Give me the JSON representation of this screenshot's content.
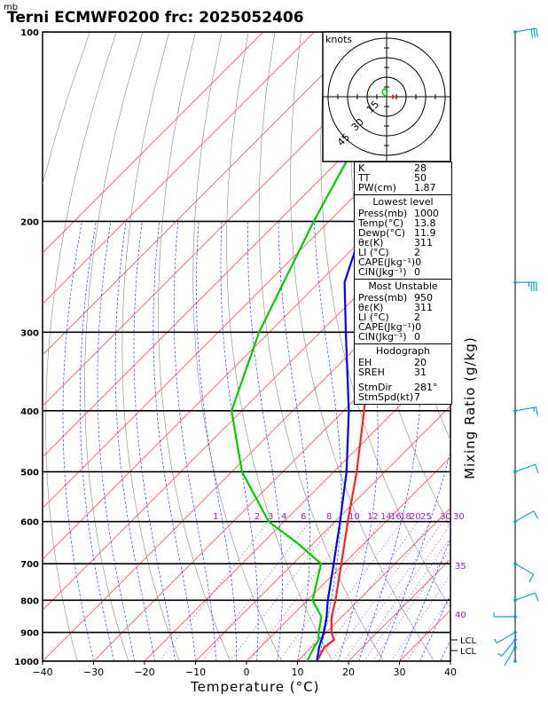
{
  "header": {
    "title": "Terni ECMWF0200  frc: 2025052406",
    "pressure_unit": "mb"
  },
  "axes": {
    "x_title": "Temperature (°C)",
    "y2_title": "Mixing Ratio (g/kg)"
  },
  "hodograph": {
    "unit_label": "knots",
    "ring_labels": [
      "15",
      "30",
      "45"
    ]
  },
  "indices": {
    "top": [
      {
        "label": "K",
        "value": "28"
      },
      {
        "label": "TT",
        "value": "50"
      },
      {
        "label": "PW(cm)",
        "value": "1.87"
      }
    ],
    "lowest_level": {
      "title": "Lowest level",
      "rows": [
        {
          "label": "Press(mb)",
          "value": "1000"
        },
        {
          "label": "Temp(°C)",
          "value": "13.8"
        },
        {
          "label": "Dewp(°C)",
          "value": "11.9"
        },
        {
          "label": "θε(K)",
          "value": "311"
        },
        {
          "label": "LI (°C)",
          "value": "2"
        },
        {
          "label": "CAPE(Jkg⁻¹)",
          "value": "0"
        },
        {
          "label": "CIN(Jkg⁻¹)",
          "value": "0"
        }
      ]
    },
    "most_unstable": {
      "title": "Most Unstable",
      "rows": [
        {
          "label": "Press(mb)",
          "value": "950"
        },
        {
          "label": "θε(K)",
          "value": "311"
        },
        {
          "label": "LI (°C)",
          "value": "2"
        },
        {
          "label": "CAPE(Jkg⁻¹)",
          "value": "0"
        },
        {
          "label": "CIN(Jkg⁻¹)",
          "value": "0"
        }
      ]
    },
    "hodograph_box": {
      "title": "Hodograph",
      "rows": [
        {
          "label": "EH",
          "value": "20"
        },
        {
          "label": "SREH",
          "value": "31"
        },
        {
          "label": "StmDir",
          "value": "281°"
        },
        {
          "label": "StmSpd(kt)",
          "value": "7"
        }
      ]
    }
  },
  "chart_data": {
    "type": "line",
    "title": "Terni ECMWF0200  frc: 2025052406",
    "x_ticks": [
      "−40",
      "−30",
      "−20",
      "−10",
      "0",
      "10",
      "20",
      "30",
      "40"
    ],
    "x_tick_values": [
      -40,
      -30,
      -20,
      -10,
      0,
      10,
      20,
      30,
      40
    ],
    "xlim": [
      -40,
      40
    ],
    "y_ticks": [
      "100",
      "200",
      "300",
      "400",
      "500",
      "600",
      "700",
      "800",
      "900",
      "1000"
    ],
    "y_tick_values": [
      100,
      200,
      300,
      400,
      500,
      600,
      700,
      800,
      900,
      1000
    ],
    "ylim": [
      1000,
      100
    ],
    "y_scale": "log",
    "mixing_ratio_labels": [
      "1",
      "2",
      "3",
      "4",
      "6",
      "8",
      "10",
      "12",
      "14",
      "16",
      "18",
      "20",
      "25",
      "30"
    ],
    "upper_mixing_labels": [
      "35",
      "40"
    ],
    "lcl_labels": [
      "LCL",
      "LCL"
    ],
    "series": [
      {
        "color": "#ff2020",
        "points": [
          [
            1000,
            13.8
          ],
          [
            950,
            12.5
          ],
          [
            925,
            13.0
          ],
          [
            900,
            11.0
          ],
          [
            850,
            8.0
          ],
          [
            800,
            5.5
          ],
          [
            700,
            -0.5
          ],
          [
            600,
            -7.5
          ],
          [
            500,
            -15.5
          ],
          [
            400,
            -26
          ],
          [
            300,
            -40
          ],
          [
            250,
            -52
          ],
          [
            200,
            -54
          ],
          [
            150,
            -52
          ],
          [
            100,
            -51
          ]
        ]
      },
      {
        "color": "#00cc00",
        "points": [
          [
            1000,
            11.9
          ],
          [
            950,
            10.5
          ],
          [
            925,
            10.0
          ],
          [
            900,
            8.5
          ],
          [
            850,
            6.0
          ],
          [
            800,
            1.0
          ],
          [
            700,
            -4.5
          ],
          [
            650,
            -13
          ],
          [
            600,
            -23
          ],
          [
            500,
            -38
          ],
          [
            400,
            -52
          ],
          [
            300,
            -62
          ],
          [
            200,
            -73
          ],
          [
            150,
            -80
          ],
          [
            100,
            -88
          ]
        ]
      },
      {
        "color": "#0000ff",
        "points": [
          [
            1000,
            13.8
          ],
          [
            950,
            11.5
          ],
          [
            900,
            9.5
          ],
          [
            850,
            7.0
          ],
          [
            800,
            4.0
          ],
          [
            700,
            -2.0
          ],
          [
            600,
            -9.0
          ],
          [
            500,
            -17.5
          ],
          [
            400,
            -29
          ],
          [
            300,
            -45
          ],
          [
            250,
            -55
          ],
          [
            200,
            -63
          ],
          [
            150,
            -73
          ],
          [
            120,
            -79
          ]
        ]
      }
    ],
    "wind_barbs": [
      {
        "pressure": 100,
        "dir": 260,
        "speed": 30
      },
      {
        "pressure": 250,
        "dir": 270,
        "speed": 35
      },
      {
        "pressure": 400,
        "dir": 260,
        "speed": 15
      },
      {
        "pressure": 500,
        "dir": 250,
        "speed": 10
      },
      {
        "pressure": 600,
        "dir": 240,
        "speed": 10
      },
      {
        "pressure": 700,
        "dir": 300,
        "speed": 10
      },
      {
        "pressure": 800,
        "dir": 250,
        "speed": 10
      },
      {
        "pressure": 850,
        "dir": 90,
        "speed": 5
      },
      {
        "pressure": 900,
        "dir": 60,
        "speed": 5
      },
      {
        "pressure": 925,
        "dir": 40,
        "speed": 5
      },
      {
        "pressure": 950,
        "dir": 30,
        "speed": 3
      },
      {
        "pressure": 1000,
        "dir": 0,
        "speed": 0
      }
    ],
    "hodograph_points": [
      [
        0,
        0
      ],
      [
        -3,
        2
      ],
      [
        -5,
        5
      ],
      [
        -4,
        8
      ],
      [
        -2,
        9
      ],
      [
        1,
        6
      ],
      [
        0,
        4
      ]
    ]
  }
}
